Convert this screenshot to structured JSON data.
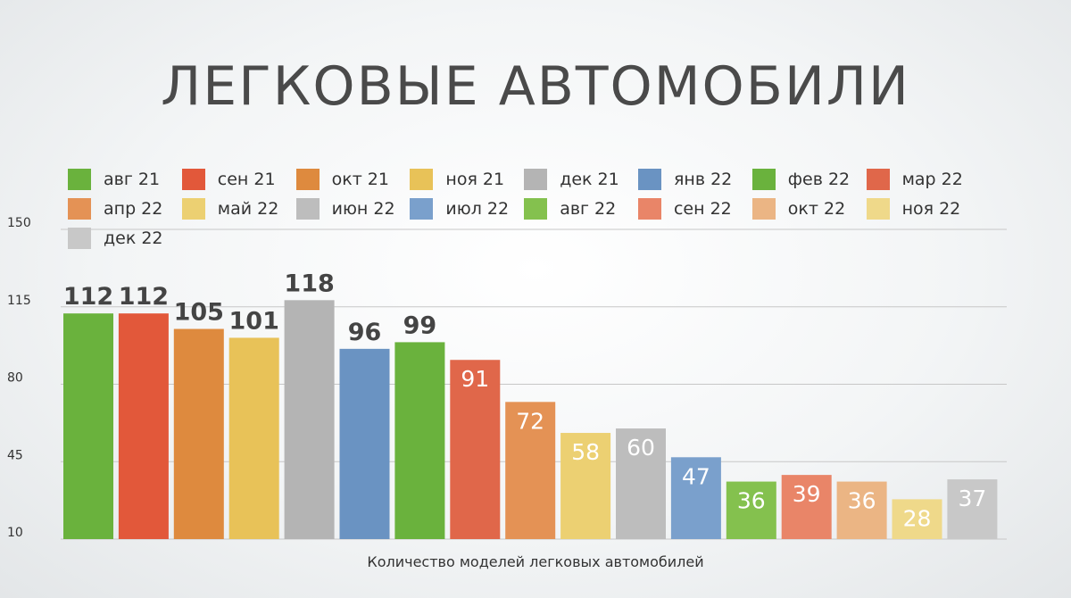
{
  "chart_data": {
    "type": "bar",
    "title": "ЛЕГКОВЫЕ АВТОМОБИЛИ",
    "xlabel": "Количество моделей легковых автомобилей",
    "ylabel": "",
    "ylim": [
      10,
      150
    ],
    "yticks": [
      "150",
      "115",
      "80",
      "45",
      "10"
    ],
    "ytick_values": [
      150,
      115,
      80,
      45,
      10
    ],
    "grid": true,
    "legend_position": "top",
    "categories": [
      "авг 21",
      "сен 21",
      "окт 21",
      "ноя 21",
      "дек 21",
      "янв 22",
      "фев 22",
      "мар 22",
      "апр 22",
      "май 22",
      "июн 22",
      "июл 22",
      "авг 22",
      "сен 22",
      "окт 22",
      "ноя 22",
      "дек 22"
    ],
    "values": [
      112,
      112,
      105,
      101,
      118,
      96,
      99,
      91,
      72,
      58,
      60,
      47,
      36,
      39,
      36,
      28,
      37
    ],
    "value_labels": [
      "112",
      "112",
      "105",
      "101",
      "118",
      "96",
      "99",
      "91",
      "72",
      "58",
      "60",
      "47",
      "36",
      "39",
      "36",
      "28",
      "37"
    ],
    "colors": [
      "#6ab23d",
      "#e2583a",
      "#de8a3e",
      "#e8c258",
      "#b4b4b4",
      "#6a93c2",
      "#6ab23d",
      "#e0674a",
      "#e49255",
      "#ecd072",
      "#bdbdbd",
      "#7aa0cc",
      "#84c14e",
      "#e98568",
      "#ebb584",
      "#efd98a",
      "#c8c8c8"
    ],
    "label_colors": [
      "#444444",
      "#444444",
      "#444444",
      "#444444",
      "#444444",
      "#444444",
      "#444444",
      "#ffffff",
      "#ffffff",
      "#ffffff",
      "#ffffff",
      "#ffffff",
      "#ffffff",
      "#ffffff",
      "#ffffff",
      "#ffffff",
      "#ffffff"
    ],
    "label_inside": [
      false,
      false,
      false,
      false,
      false,
      false,
      false,
      true,
      true,
      true,
      true,
      true,
      true,
      true,
      true,
      true,
      true
    ]
  }
}
